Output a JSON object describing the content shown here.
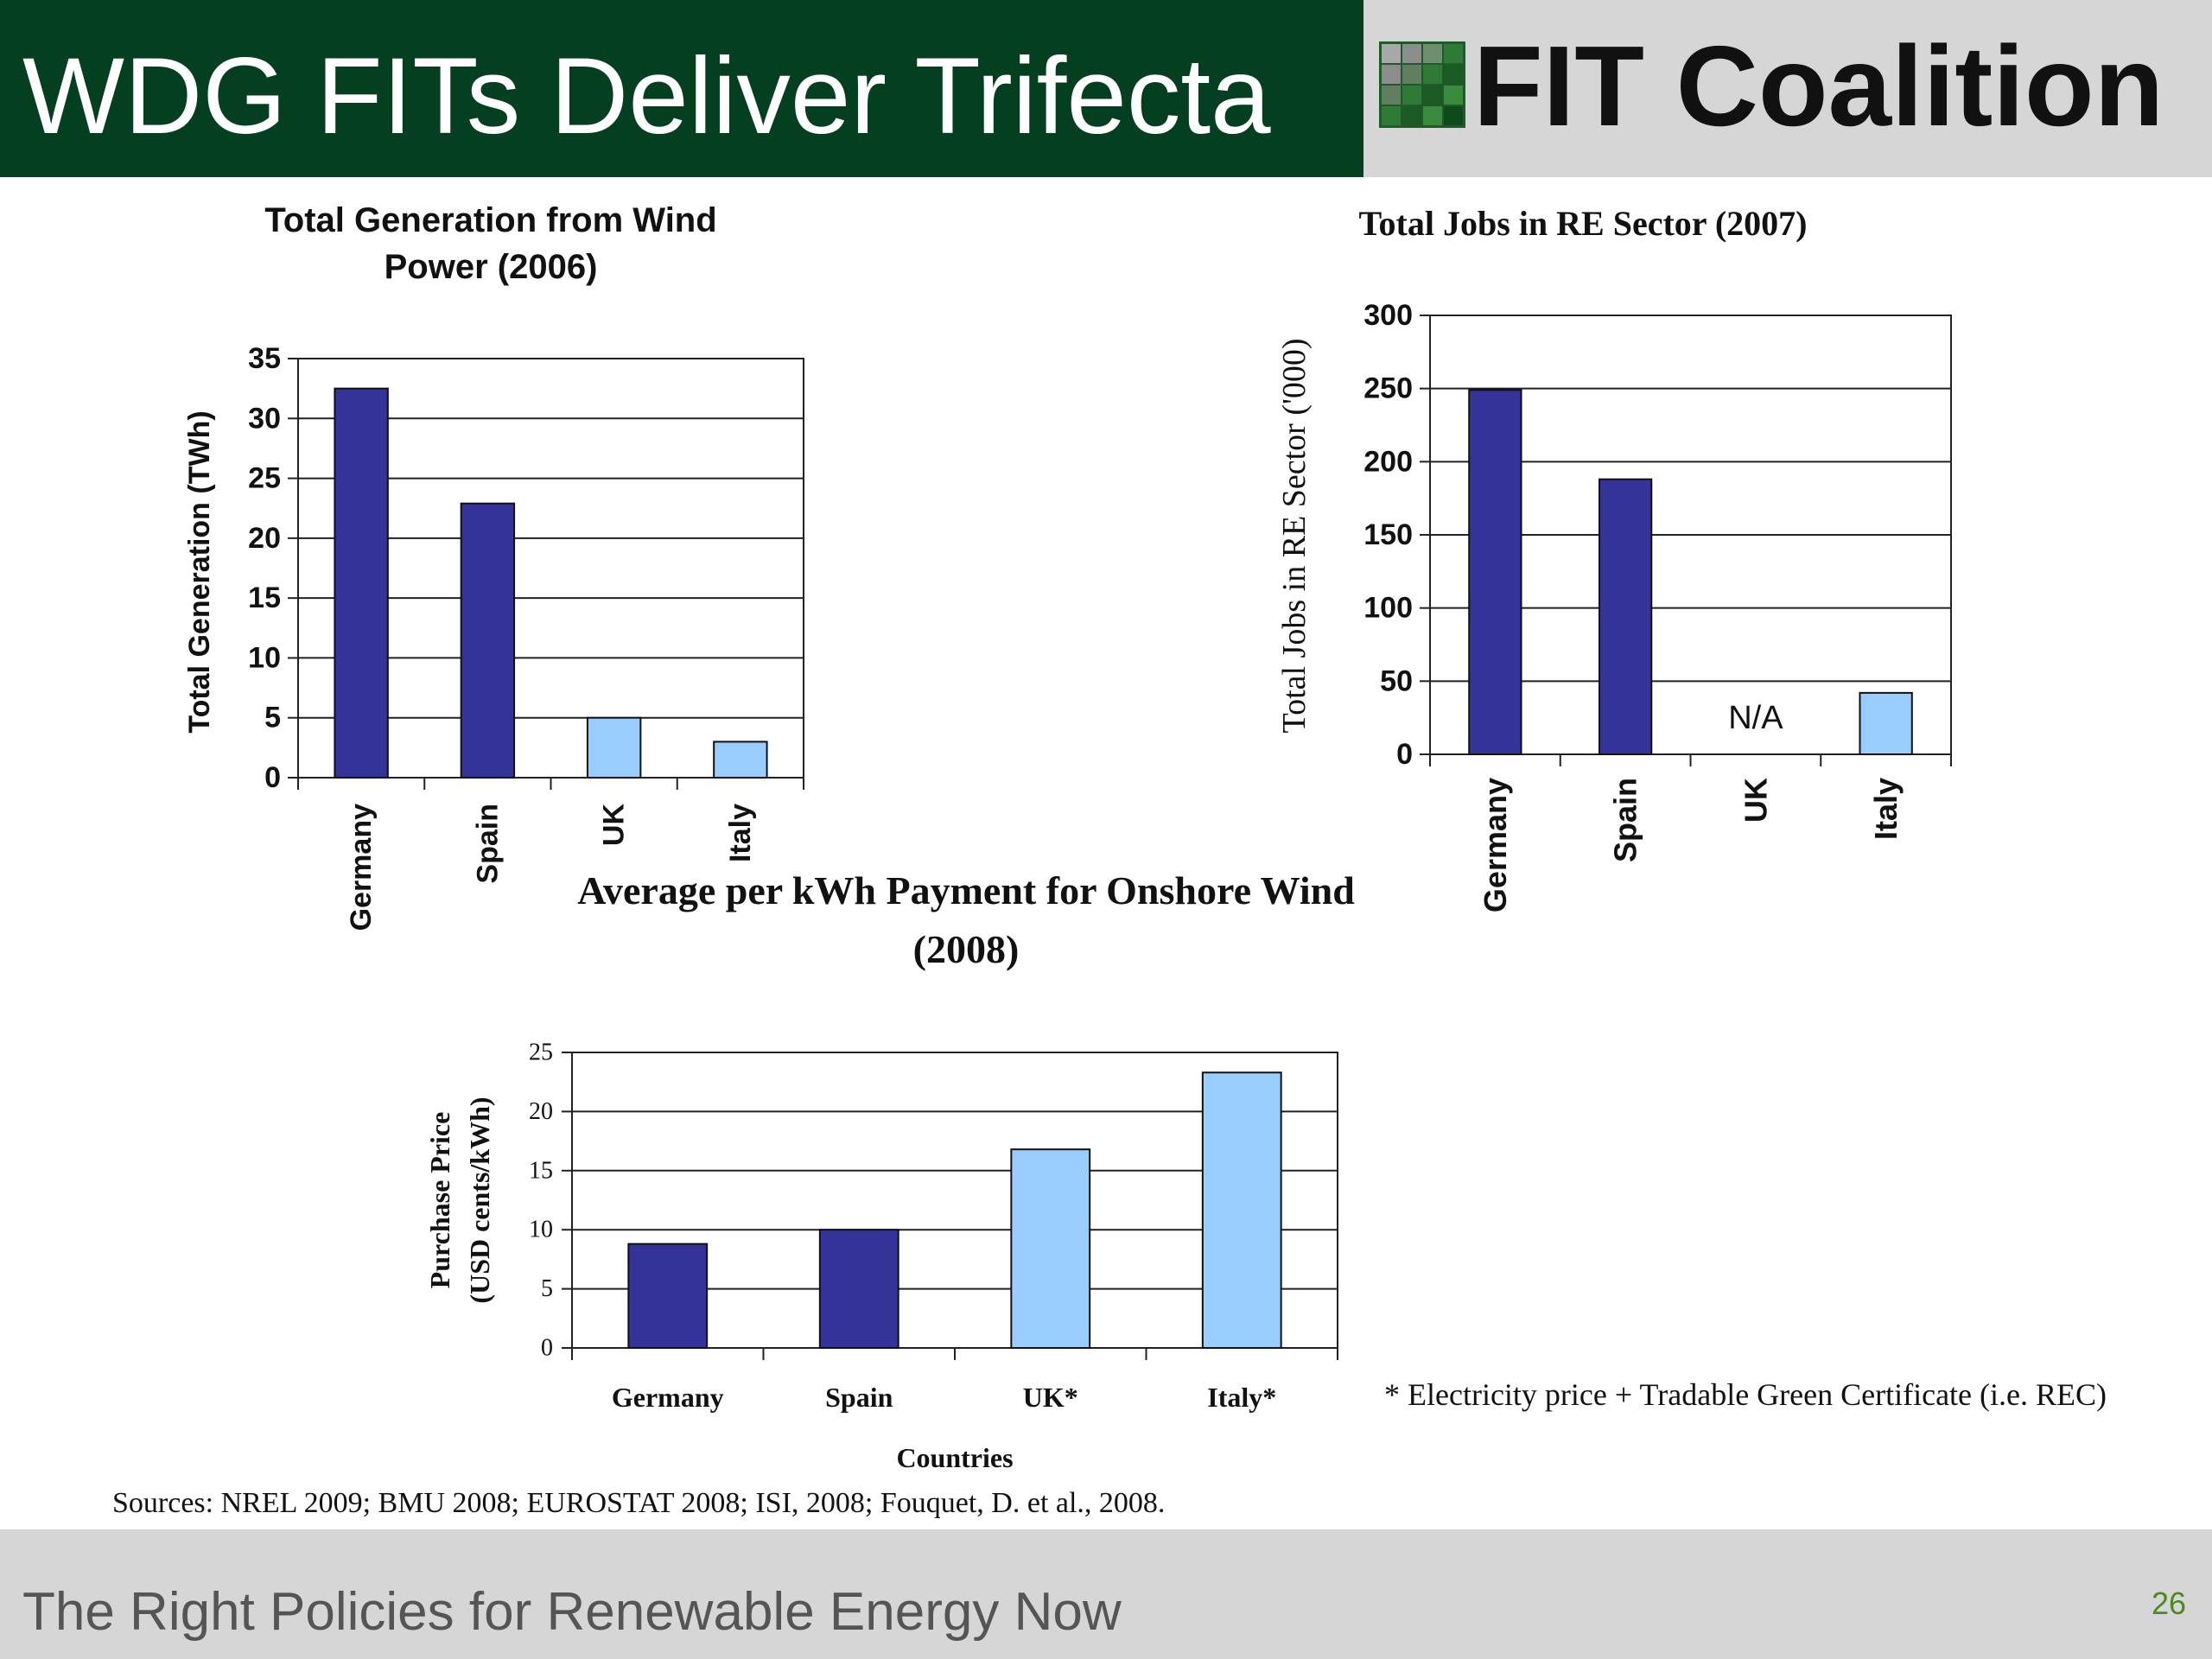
{
  "slide": {
    "title": "WDG FITs Deliver Trifecta",
    "logo_text": "FIT Coalition",
    "footer_tagline": "The Right Policies for Renewable Energy Now",
    "page_number": "26",
    "sources": "Sources:  NREL 2009; BMU 2008; EUROSTAT 2008; ISI, 2008; Fouquet, D. et al., 2008.",
    "footnote": "* Electricity price + Tradable Green Certificate (i.e. REC)",
    "colors": {
      "header_green": "#04401f",
      "header_gray": "#d6d6d6",
      "bar_dark": "#333399",
      "bar_light": "#99ccff",
      "page_number": "#4a8a1f"
    },
    "logo_icon": "grid-squares-logo-icon"
  },
  "chart_data": [
    {
      "type": "bar",
      "title_lines": [
        "Total Generation from Wind",
        "Power (2006)"
      ],
      "xlabel": "",
      "ylabel": "Total Generation (TWh)",
      "categories": [
        "Germany",
        "Spain",
        "UK",
        "Italy"
      ],
      "values": [
        32.5,
        22.9,
        5.0,
        3.0
      ],
      "bar_colors": [
        "#333399",
        "#333399",
        "#99ccff",
        "#99ccff"
      ],
      "ylim": [
        0,
        35
      ],
      "yticks": [
        0,
        5,
        10,
        15,
        20,
        25,
        30,
        35
      ],
      "grid": true,
      "legend": "none"
    },
    {
      "type": "bar",
      "title_lines": [
        "Total Jobs in RE Sector (2007)"
      ],
      "xlabel": "",
      "ylabel": "Total Jobs in RE Sector ('000)",
      "categories": [
        "Germany",
        "Spain",
        "UK",
        "Italy"
      ],
      "values": [
        249,
        188,
        null,
        42
      ],
      "bar_colors": [
        "#333399",
        "#333399",
        "#99ccff",
        "#99ccff"
      ],
      "ylim": [
        0,
        300
      ],
      "yticks": [
        0,
        50,
        100,
        150,
        200,
        250,
        300
      ],
      "annotations": [
        {
          "category": "UK",
          "text": "N/A"
        }
      ],
      "grid": true,
      "legend": "none"
    },
    {
      "type": "bar",
      "title_lines": [
        "Average per kWh Payment for Onshore Wind",
        "(2008)"
      ],
      "xlabel": "Countries",
      "ylabel_lines": [
        "Purchase Price",
        "(USD cents/kWh)"
      ],
      "categories": [
        "Germany",
        "Spain",
        "UK*",
        "Italy*"
      ],
      "values": [
        8.8,
        10.0,
        16.8,
        23.3
      ],
      "bar_colors": [
        "#333399",
        "#333399",
        "#99ccff",
        "#99ccff"
      ],
      "ylim": [
        0,
        25
      ],
      "yticks": [
        0,
        5,
        10,
        15,
        20,
        25
      ],
      "grid": true,
      "legend": "none"
    }
  ]
}
